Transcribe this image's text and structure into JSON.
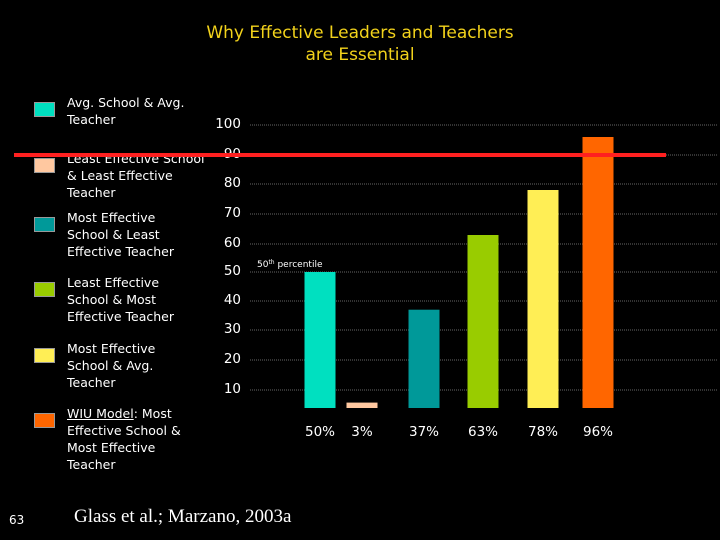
{
  "title_line1": "Why Effective Leaders and Teachers",
  "title_line2": "are Essential",
  "legend": [
    {
      "label": "Avg. School & Avg.\nTeacher",
      "color": "#00e0c0"
    },
    {
      "label": "Least Effective School\n& Least Effective\nTeacher",
      "color": "#ffc8a0"
    },
    {
      "label": "Most Effective\nSchool & Least\nEffective Teacher",
      "color": "#009999"
    },
    {
      "label": "Least Effective\nSchool & Most\nEffective Teacher",
      "color": "#99cc00"
    },
    {
      "label": "Most Effective\nSchool & Avg.\nTeacher",
      "color": "#ffee55"
    },
    {
      "label_underlined": "WIU Model",
      "label_rest": ": Most\nEffective School &\nMost Effective\nTeacher",
      "color": "#ff6600"
    }
  ],
  "chart_data": {
    "type": "bar",
    "categories": [
      "50%",
      "3%",
      "37%",
      "63%",
      "78%",
      "96%"
    ],
    "values": [
      50,
      3,
      37,
      63,
      78,
      96
    ],
    "colors": [
      "#00e0c0",
      "#ffc8a0",
      "#009999",
      "#99cc00",
      "#ffee55",
      "#ff6600"
    ],
    "yticks": [
      "100",
      "90",
      "80",
      "70",
      "60",
      "50",
      "40",
      "30",
      "20",
      "10"
    ],
    "ylim": [
      0,
      100
    ],
    "grid": true,
    "reference_line": {
      "value": 90,
      "color": "#ff2020"
    },
    "annotation": {
      "text": "50",
      "superscript": "th",
      "rest": " percentile"
    }
  },
  "citation": "Glass et al.; Marzano, 2003a",
  "page_number": "63"
}
